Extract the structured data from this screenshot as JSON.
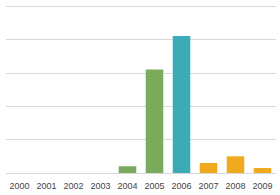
{
  "chart_data": {
    "type": "bar",
    "categories": [
      "2000",
      "2001",
      "2002",
      "2003",
      "2004",
      "2005",
      "2006",
      "2007",
      "2008",
      "2009"
    ],
    "values": [
      0,
      0,
      0,
      0,
      4,
      62,
      82,
      6,
      10,
      3
    ],
    "colors": [
      "#7aaa5c",
      "#7aaa5c",
      "#7aaa5c",
      "#7aaa5c",
      "#7aaa5c",
      "#7aaa5c",
      "#3aacb8",
      "#f0aa20",
      "#f0aa20",
      "#f0aa20"
    ],
    "ylim": [
      0,
      100
    ],
    "yticks": [
      0,
      20,
      40,
      60,
      80,
      100
    ],
    "grid": true,
    "tick_labels": "x"
  }
}
